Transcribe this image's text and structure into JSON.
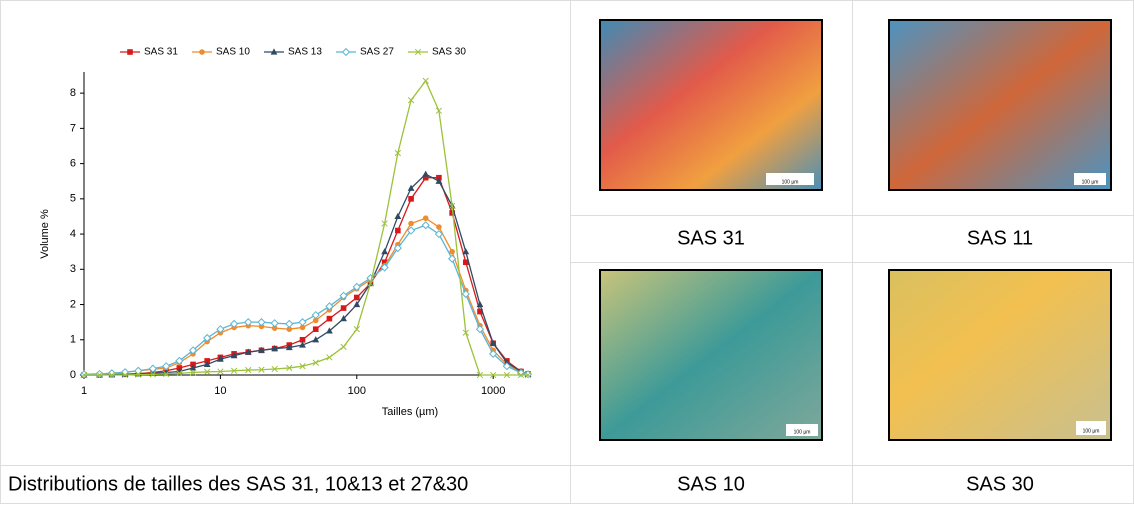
{
  "chart_data": {
    "type": "line",
    "xlabel": "Tailles (µm)",
    "ylabel": "Volume %",
    "xscale": "log",
    "x": [
      1,
      1.3,
      1.6,
      2,
      2.5,
      3.2,
      4,
      5,
      6.3,
      8,
      10,
      12.6,
      16,
      20,
      25,
      32,
      40,
      50,
      63,
      80,
      100,
      126,
      160,
      200,
      250,
      320,
      400,
      500,
      630,
      800,
      1000,
      1260,
      1600,
      1800
    ],
    "xlim": [
      1,
      1800
    ],
    "xticks": [
      1,
      10,
      100,
      1000
    ],
    "ylim": [
      0,
      8.6
    ],
    "yticks": [
      0,
      1,
      2,
      3,
      4,
      5,
      6,
      7,
      8
    ],
    "series": [
      {
        "name": "SAS 31",
        "color": "#d7191c",
        "marker": "square",
        "values": [
          0,
          0,
          0.01,
          0.02,
          0.04,
          0.07,
          0.12,
          0.2,
          0.3,
          0.4,
          0.5,
          0.6,
          0.65,
          0.7,
          0.75,
          0.85,
          1.0,
          1.3,
          1.6,
          1.9,
          2.2,
          2.6,
          3.2,
          4.1,
          5.0,
          5.6,
          5.6,
          4.6,
          3.2,
          1.8,
          0.9,
          0.4,
          0.1,
          0.03
        ]
      },
      {
        "name": "SAS 10",
        "color": "#f08c2e",
        "marker": "circle",
        "values": [
          0.02,
          0.03,
          0.05,
          0.08,
          0.12,
          0.16,
          0.2,
          0.35,
          0.6,
          0.95,
          1.2,
          1.35,
          1.4,
          1.38,
          1.33,
          1.3,
          1.35,
          1.55,
          1.85,
          2.2,
          2.45,
          2.7,
          3.1,
          3.7,
          4.3,
          4.45,
          4.2,
          3.5,
          2.4,
          1.4,
          0.7,
          0.3,
          0.08,
          0.02
        ]
      },
      {
        "name": "SAS 13",
        "color": "#2f4b63",
        "marker": "triangle",
        "values": [
          0,
          0,
          0.01,
          0.02,
          0.03,
          0.05,
          0.07,
          0.1,
          0.2,
          0.3,
          0.45,
          0.55,
          0.65,
          0.7,
          0.75,
          0.78,
          0.85,
          1.0,
          1.25,
          1.6,
          2.0,
          2.6,
          3.5,
          4.5,
          5.3,
          5.7,
          5.5,
          4.8,
          3.5,
          2.0,
          0.9,
          0.35,
          0.1,
          0.02
        ]
      },
      {
        "name": "SAS 27",
        "color": "#5bb5d5",
        "marker": "diamond",
        "values": [
          0.02,
          0.03,
          0.05,
          0.08,
          0.12,
          0.18,
          0.25,
          0.4,
          0.7,
          1.05,
          1.3,
          1.45,
          1.5,
          1.5,
          1.47,
          1.45,
          1.5,
          1.7,
          1.95,
          2.25,
          2.5,
          2.75,
          3.05,
          3.6,
          4.1,
          4.25,
          4.0,
          3.3,
          2.3,
          1.3,
          0.6,
          0.25,
          0.06,
          0.02
        ]
      },
      {
        "name": "SAS 30",
        "color": "#9cc23a",
        "marker": "x",
        "values": [
          0,
          0,
          0,
          0,
          0.01,
          0.02,
          0.03,
          0.05,
          0.07,
          0.09,
          0.1,
          0.12,
          0.14,
          0.15,
          0.17,
          0.2,
          0.25,
          0.35,
          0.5,
          0.8,
          1.3,
          2.6,
          4.3,
          6.3,
          7.8,
          8.35,
          7.5,
          4.8,
          1.2,
          0,
          0,
          0,
          0,
          0
        ]
      }
    ]
  },
  "caption": "Distributions de tailles des SAS 31, 10&13 et 27&30",
  "images": [
    {
      "caption": "SAS 31",
      "scale_bar": "100 µm"
    },
    {
      "caption": "SAS 11",
      "scale_bar": "100 µm"
    },
    {
      "caption": "SAS 10",
      "scale_bar": "100 µm"
    },
    {
      "caption": "SAS 30",
      "scale_bar": "100 µm"
    }
  ]
}
